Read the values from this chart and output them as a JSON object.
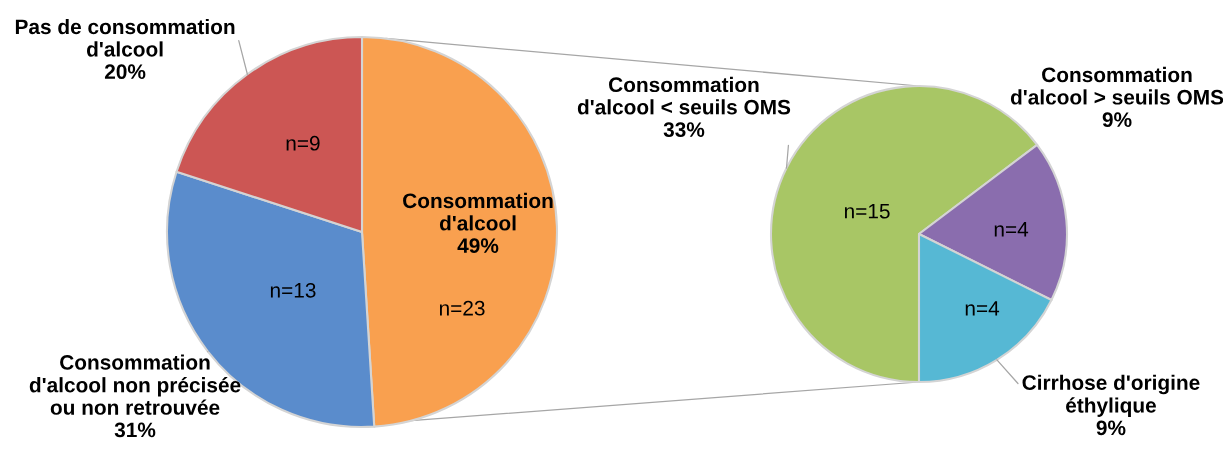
{
  "chart_data": [
    {
      "type": "pie",
      "categories": [
        "Consommation\nd'alcool",
        "Consommation\nd'alcool non précisée\nou non retrouvée",
        "Pas de consommation\nd'alcool"
      ],
      "values": [
        49,
        31,
        20
      ],
      "value_labels": [
        "49%",
        "31%",
        "20%"
      ],
      "colors": [
        "#f9a04f",
        "#5a8ccc",
        "#cc5654"
      ],
      "annotations": [
        {
          "text": "n=23",
          "x": "Consommation\nd'alcool"
        },
        {
          "text": "n=13",
          "x": "Consommation\nd'alcool non précisée\nou non retrouvée"
        },
        {
          "text": "n=9",
          "x": "Pas de consommation\nd'alcool"
        }
      ]
    },
    {
      "type": "pie",
      "categories": [
        "Consommation\nd'alcool < seuils OMS",
        "Consommation\nd'alcool > seuils OMS",
        "Cirrhose d'origine\néthylique"
      ],
      "values": [
        33,
        9,
        9
      ],
      "value_labels": [
        "33%",
        "9%",
        "9%"
      ],
      "colors": [
        "#a8c665",
        "#8a6dae",
        "#56b8d4"
      ],
      "annotations": [
        {
          "text": "n=15",
          "x": "Consommation\nd'alcool < seuils OMS"
        },
        {
          "text": "n=4",
          "x": "Consommation\nd'alcool > seuils OMS"
        },
        {
          "text": "n=4",
          "x": "Cirrhose d'origine\néthylique"
        }
      ]
    }
  ]
}
